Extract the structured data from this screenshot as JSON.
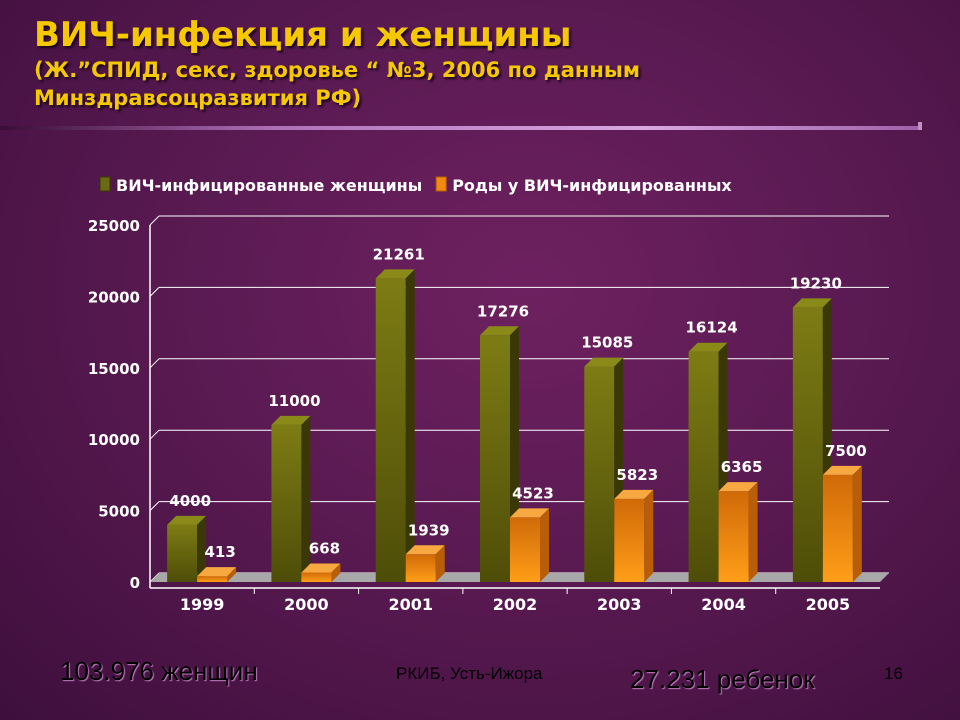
{
  "slide": {
    "title": "ВИЧ-инфекция и женщины",
    "subtitle_line1": "(Ж.”СПИД, секс, здоровье “ №3, 2006 по данным",
    "subtitle_line2": "Минздравсоцразвития РФ)",
    "footer_left": "103.976 женщин",
    "footer_center": "РКИБ, Усть-Ижора",
    "footer_right": "27.231 ребенок",
    "page_number": "16"
  },
  "colors": {
    "title": "#f5c800",
    "series1_front": "#6b6a10",
    "series1_top": "#8a8a18",
    "series1_side": "#3a3806",
    "series2_front": "#f08a10",
    "series2_top": "#f8a840",
    "series2_side": "#b85e08",
    "plot_floor": "#a8a8a8"
  },
  "chart_data": {
    "type": "bar",
    "categories": [
      "1999",
      "2000",
      "2001",
      "2002",
      "2003",
      "2004",
      "2005"
    ],
    "series": [
      {
        "name": "ВИЧ-инфицированные женщины",
        "values": [
          4000,
          11000,
          21261,
          17276,
          15085,
          16124,
          19230
        ]
      },
      {
        "name": "Роды у ВИЧ-инфицированных",
        "values": [
          413,
          668,
          1939,
          4523,
          5823,
          6365,
          7500
        ]
      }
    ],
    "data_labels": [
      [
        "4000",
        "11000",
        "21261",
        "17276",
        "15085",
        "16124",
        "19230"
      ],
      [
        "413",
        "668",
        "1939",
        "4523",
        "5823",
        "6365",
        "7500"
      ]
    ],
    "y_ticks": [
      "0",
      "5000",
      "10000",
      "15000",
      "20000",
      "25000"
    ],
    "ylim": [
      0,
      25000
    ],
    "grid": true,
    "legend_position": "top"
  }
}
